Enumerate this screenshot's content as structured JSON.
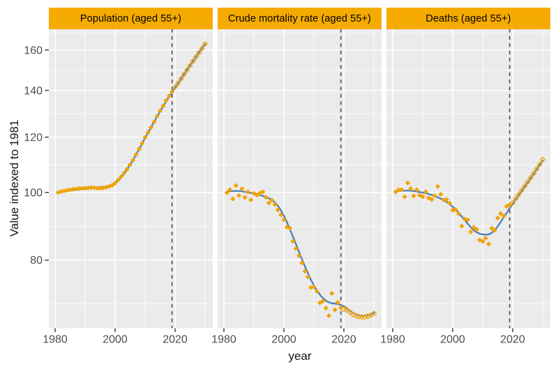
{
  "colors": {
    "strip_fill": "#F5AB00",
    "strip_text": "#000000",
    "panel_background": "#EBEBEB",
    "grid": "#FFFFFF",
    "point": "#F0A40A",
    "smooth_line": "#4F7EBB",
    "dashed_line": "#595959",
    "tick_mark": "#333333",
    "tick_label": "#4D4D4D",
    "axis_title": "#141414"
  },
  "chart_data": {
    "type": "scatter",
    "title": "",
    "xlabel": "year",
    "ylabel": "Value indexed to 1981",
    "y_scale": "log10",
    "x_ticks": [
      1980,
      2000,
      2020
    ],
    "x_minor_ticks": [
      1990,
      2010,
      2030
    ],
    "y_ticks": [
      160,
      140,
      120,
      100,
      80
    ],
    "vline_x": 2019,
    "historical_end_year": 2019,
    "point_styles": {
      "historical": "solid-diamond",
      "projection": "open-diamond"
    },
    "x": [
      1981,
      1982,
      1983,
      1984,
      1985,
      1986,
      1987,
      1988,
      1989,
      1990,
      1991,
      1992,
      1993,
      1994,
      1995,
      1996,
      1997,
      1998,
      1999,
      2000,
      2001,
      2002,
      2003,
      2004,
      2005,
      2006,
      2007,
      2008,
      2009,
      2010,
      2011,
      2012,
      2013,
      2014,
      2015,
      2016,
      2017,
      2018,
      2019,
      2020,
      2021,
      2022,
      2023,
      2024,
      2025,
      2026,
      2027,
      2028,
      2029,
      2030
    ],
    "facets": [
      {
        "label": "Population (aged 55+)",
        "points": [
          100.0,
          100.3,
          100.5,
          100.7,
          100.9,
          101.1,
          101.2,
          101.3,
          101.4,
          101.4,
          101.5,
          101.6,
          101.6,
          101.4,
          101.4,
          101.5,
          101.7,
          102.0,
          102.4,
          103.1,
          104.2,
          105.4,
          106.6,
          108.0,
          109.6,
          111.3,
          113.3,
          115.4,
          117.6,
          119.9,
          121.9,
          123.9,
          126.2,
          128.6,
          130.9,
          133.0,
          135.4,
          137.4,
          139.4,
          141.6,
          143.4,
          145.5,
          147.6,
          149.8,
          152.0,
          154.2,
          156.4,
          158.6,
          160.8,
          163.2
        ],
        "smooth": [
          100.0,
          100.2,
          100.35,
          100.5,
          100.65,
          100.8,
          100.9,
          101.0,
          101.1,
          101.2,
          101.3,
          101.4,
          101.5,
          101.6,
          101.7,
          101.8,
          101.95,
          102.15,
          102.5,
          103.1,
          104.0,
          105.1,
          106.4,
          107.9,
          109.6,
          111.4,
          113.3,
          115.3,
          117.4,
          119.6,
          121.8,
          124.0,
          126.2,
          128.4,
          130.6,
          132.8,
          135.0,
          137.1,
          139.2,
          141.3,
          143.4,
          145.5,
          147.7,
          149.9,
          152.1,
          154.3,
          156.5,
          158.7,
          160.9,
          163.1
        ]
      },
      {
        "label": "Crude mortality rate (aged 55+)",
        "points": [
          99.9,
          100.9,
          97.9,
          102.3,
          99.0,
          101.2,
          98.4,
          100.2,
          97.6,
          99.7,
          99.1,
          99.8,
          100.2,
          98.4,
          96.6,
          97.5,
          96.1,
          94.4,
          92.9,
          91.4,
          89.2,
          88.9,
          85.1,
          83.1,
          81.2,
          79.3,
          77.1,
          75.7,
          73.1,
          73.2,
          72.2,
          69.5,
          69.9,
          68.3,
          66.6,
          71.7,
          67.9,
          69.6,
          68.4,
          68.0,
          67.9,
          67.4,
          66.9,
          66.6,
          66.4,
          66.3,
          66.3,
          66.5,
          66.7,
          67.1
        ],
        "smooth": [
          100.3,
          100.4,
          100.45,
          100.5,
          100.45,
          100.35,
          100.2,
          100.05,
          99.85,
          99.65,
          99.4,
          99.15,
          98.85,
          98.5,
          98.1,
          97.55,
          96.8,
          95.7,
          94.3,
          92.6,
          90.7,
          88.6,
          86.5,
          84.4,
          82.3,
          80.3,
          78.4,
          76.6,
          75.0,
          73.6,
          72.4,
          71.4,
          70.6,
          70.0,
          69.6,
          69.4,
          69.3,
          69.2,
          69.0,
          68.7,
          68.2,
          67.7,
          67.2,
          66.9,
          66.7,
          66.6,
          66.6,
          66.7,
          66.9,
          67.2
        ]
      },
      {
        "label": "Deaths (aged 55+)",
        "points": [
          100.2,
          100.9,
          100.9,
          98.6,
          103.2,
          101.3,
          98.9,
          100.9,
          99.1,
          98.6,
          100.2,
          98.2,
          97.7,
          98.9,
          102.0,
          99.4,
          97.6,
          97.7,
          96.5,
          94.3,
          94.5,
          93.2,
          89.5,
          91.6,
          91.4,
          87.8,
          89.1,
          88.5,
          85.5,
          85.1,
          86.0,
          84.4,
          88.9,
          88.3,
          91.9,
          93.3,
          92.5,
          95.5,
          96.0,
          96.6,
          98.0,
          99.3,
          100.7,
          102.1,
          103.5,
          105.0,
          106.5,
          108.1,
          109.7,
          111.4
        ],
        "smooth": [
          100.3,
          100.45,
          100.55,
          100.6,
          100.6,
          100.55,
          100.45,
          100.3,
          100.15,
          99.95,
          99.75,
          99.5,
          99.2,
          98.85,
          98.45,
          98.0,
          97.5,
          96.9,
          96.2,
          95.4,
          94.5,
          93.5,
          92.4,
          91.3,
          90.2,
          89.2,
          88.3,
          87.7,
          87.3,
          87.1,
          87.0,
          87.1,
          87.5,
          88.3,
          89.4,
          90.7,
          92.1,
          93.5,
          94.9,
          96.3,
          97.7,
          99.1,
          100.5,
          101.9,
          103.3,
          104.8,
          106.3,
          107.9,
          109.5,
          111.1
        ]
      }
    ]
  }
}
